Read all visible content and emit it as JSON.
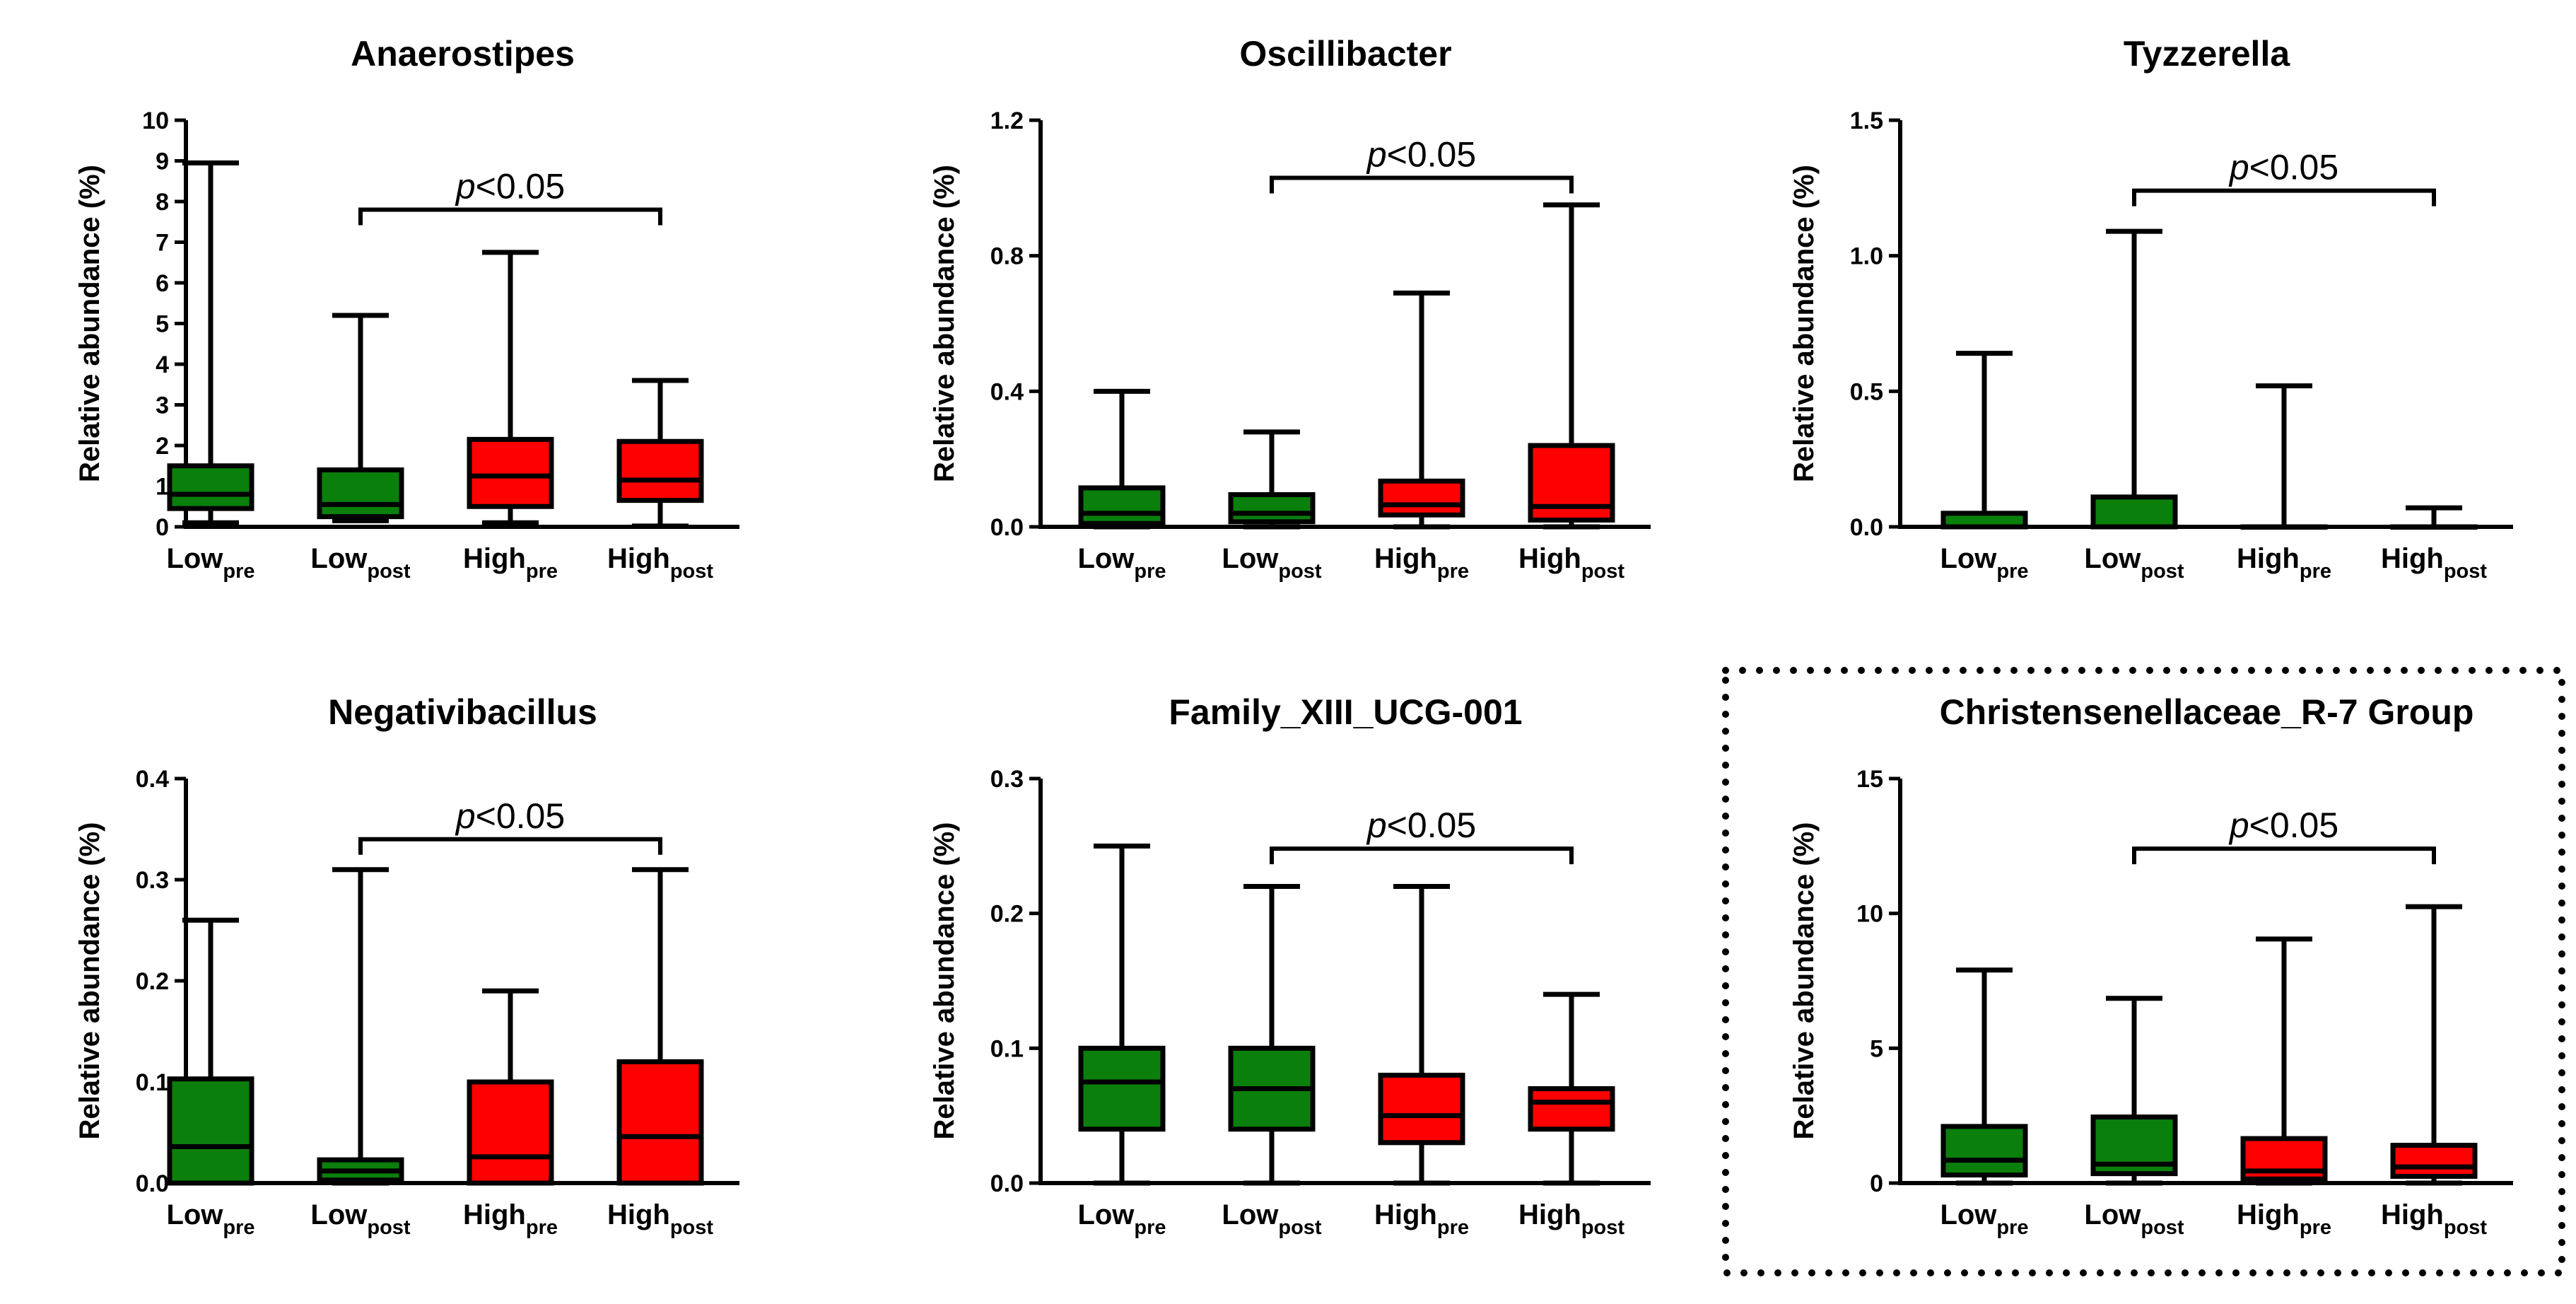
{
  "figure": {
    "colors": {
      "green": "#0b7f0b",
      "red": "#ff0000",
      "ink": "#000000"
    },
    "highlighted_panel": "Christensenellaceae_R-7 Group"
  },
  "chart_data": [
    {
      "type": "boxplot",
      "title": "Anaerostipes",
      "ylabel": "Relative abundance (%)",
      "ylim": [
        0,
        10
      ],
      "yticks": [
        "0",
        "1",
        "2",
        "3",
        "4",
        "5",
        "6",
        "7",
        "8",
        "9",
        "10"
      ],
      "categories": [
        {
          "main": "Low",
          "sub": "pre",
          "color": "#0b7f0b"
        },
        {
          "main": "Low",
          "sub": "post",
          "color": "#0b7f0b"
        },
        {
          "main": "High",
          "sub": "pre",
          "color": "#ff0000"
        },
        {
          "main": "High",
          "sub": "post",
          "color": "#ff0000"
        }
      ],
      "boxes": [
        {
          "min": 0.1,
          "q1": 0.45,
          "median": 0.8,
          "q3": 1.5,
          "max": 8.95
        },
        {
          "min": 0.15,
          "q1": 0.25,
          "median": 0.55,
          "q3": 1.4,
          "max": 5.2
        },
        {
          "min": 0.1,
          "q1": 0.5,
          "median": 1.25,
          "q3": 2.15,
          "max": 6.75
        },
        {
          "min": 0.02,
          "q1": 0.65,
          "median": 1.15,
          "q3": 2.1,
          "max": 3.6
        }
      ],
      "significance": {
        "from": 1,
        "to": 3,
        "y": 7.8,
        "p_symbol": "p",
        "p_rest": "<0.05"
      }
    },
    {
      "type": "boxplot",
      "title": "Oscillibacter",
      "ylabel": "Relative abundance (%)",
      "ylim": [
        0,
        1.2
      ],
      "yticks": [
        "0.0",
        "0.4",
        "0.8",
        "1.2"
      ],
      "categories": [
        {
          "main": "Low",
          "sub": "pre",
          "color": "#0b7f0b"
        },
        {
          "main": "Low",
          "sub": "post",
          "color": "#0b7f0b"
        },
        {
          "main": "High",
          "sub": "pre",
          "color": "#ff0000"
        },
        {
          "main": "High",
          "sub": "post",
          "color": "#ff0000"
        }
      ],
      "boxes": [
        {
          "min": 0.0,
          "q1": 0.01,
          "median": 0.04,
          "q3": 0.115,
          "max": 0.4
        },
        {
          "min": 0.0,
          "q1": 0.015,
          "median": 0.04,
          "q3": 0.095,
          "max": 0.28
        },
        {
          "min": 0.0,
          "q1": 0.035,
          "median": 0.065,
          "q3": 0.135,
          "max": 0.69
        },
        {
          "min": 0.0,
          "q1": 0.02,
          "median": 0.06,
          "q3": 0.24,
          "max": 0.95
        }
      ],
      "significance": {
        "from": 1,
        "to": 3,
        "y": 1.03,
        "p_symbol": "p",
        "p_rest": "<0.05"
      }
    },
    {
      "type": "boxplot",
      "title": "Tyzzerella",
      "ylabel": "Relative abundance (%)",
      "ylim": [
        0,
        1.5
      ],
      "yticks": [
        "0.0",
        "0.5",
        "1.0",
        "1.5"
      ],
      "categories": [
        {
          "main": "Low",
          "sub": "pre",
          "color": "#0b7f0b"
        },
        {
          "main": "Low",
          "sub": "post",
          "color": "#0b7f0b"
        },
        {
          "main": "High",
          "sub": "pre",
          "color": "#ff0000"
        },
        {
          "main": "High",
          "sub": "post",
          "color": "#ff0000"
        }
      ],
      "boxes": [
        {
          "min": 0.0,
          "q1": 0.0,
          "median": 0.0,
          "q3": 0.05,
          "max": 0.64
        },
        {
          "min": 0.0,
          "q1": 0.0,
          "median": 0.0,
          "q3": 0.11,
          "max": 1.09
        },
        {
          "min": 0.0,
          "q1": 0.0,
          "median": 0.0,
          "q3": 0.0,
          "max": 0.52
        },
        {
          "min": 0.0,
          "q1": 0.0,
          "median": 0.0,
          "q3": 0.0,
          "max": 0.07
        }
      ],
      "significance": {
        "from": 1,
        "to": 3,
        "y": 1.24,
        "p_symbol": "p",
        "p_rest": "<0.05"
      }
    },
    {
      "type": "boxplot",
      "title": "Negativibacillus",
      "ylabel": "Relative abundance (%)",
      "ylim": [
        0,
        0.4
      ],
      "yticks": [
        "0.0",
        "0.1",
        "0.2",
        "0.3",
        "0.4"
      ],
      "categories": [
        {
          "main": "Low",
          "sub": "pre",
          "color": "#0b7f0b"
        },
        {
          "main": "Low",
          "sub": "post",
          "color": "#0b7f0b"
        },
        {
          "main": "High",
          "sub": "pre",
          "color": "#ff0000"
        },
        {
          "main": "High",
          "sub": "post",
          "color": "#ff0000"
        }
      ],
      "boxes": [
        {
          "min": 0.0,
          "q1": 0.0,
          "median": 0.036,
          "q3": 0.103,
          "max": 0.26
        },
        {
          "min": 0.0,
          "q1": 0.003,
          "median": 0.012,
          "q3": 0.023,
          "max": 0.31
        },
        {
          "min": 0.0,
          "q1": 0.0,
          "median": 0.026,
          "q3": 0.1,
          "max": 0.19
        },
        {
          "min": 0.0,
          "q1": 0.0,
          "median": 0.046,
          "q3": 0.12,
          "max": 0.31
        }
      ],
      "significance": {
        "from": 1,
        "to": 3,
        "y": 0.34,
        "p_symbol": "p",
        "p_rest": "<0.05"
      }
    },
    {
      "type": "boxplot",
      "title": "Family_XIII_UCG-001",
      "ylabel": "Relative abundance (%)",
      "ylim": [
        0,
        0.3
      ],
      "yticks": [
        "0.0",
        "0.1",
        "0.2",
        "0.3"
      ],
      "categories": [
        {
          "main": "Low",
          "sub": "pre",
          "color": "#0b7f0b"
        },
        {
          "main": "Low",
          "sub": "post",
          "color": "#0b7f0b"
        },
        {
          "main": "High",
          "sub": "pre",
          "color": "#ff0000"
        },
        {
          "main": "High",
          "sub": "post",
          "color": "#ff0000"
        }
      ],
      "boxes": [
        {
          "min": 0.0,
          "q1": 0.04,
          "median": 0.075,
          "q3": 0.1,
          "max": 0.25
        },
        {
          "min": 0.0,
          "q1": 0.04,
          "median": 0.07,
          "q3": 0.1,
          "max": 0.22
        },
        {
          "min": 0.0,
          "q1": 0.03,
          "median": 0.05,
          "q3": 0.08,
          "max": 0.22
        },
        {
          "min": 0.0,
          "q1": 0.04,
          "median": 0.06,
          "q3": 0.07,
          "max": 0.14
        }
      ],
      "significance": {
        "from": 1,
        "to": 3,
        "y": 0.248,
        "p_symbol": "p",
        "p_rest": "<0.05"
      }
    },
    {
      "type": "boxplot",
      "title": "Christensenellaceae_R-7 Group",
      "ylabel": "Relative abundance (%)",
      "ylim": [
        0,
        15
      ],
      "yticks": [
        "0",
        "5",
        "10",
        "15"
      ],
      "categories": [
        {
          "main": "Low",
          "sub": "pre",
          "color": "#0b7f0b"
        },
        {
          "main": "Low",
          "sub": "post",
          "color": "#0b7f0b"
        },
        {
          "main": "High",
          "sub": "pre",
          "color": "#ff0000"
        },
        {
          "main": "High",
          "sub": "post",
          "color": "#ff0000"
        }
      ],
      "boxes": [
        {
          "min": 0.0,
          "q1": 0.3,
          "median": 0.85,
          "q3": 2.1,
          "max": 7.9
        },
        {
          "min": 0.0,
          "q1": 0.35,
          "median": 0.7,
          "q3": 2.45,
          "max": 6.85
        },
        {
          "min": 0.0,
          "q1": 0.15,
          "median": 0.45,
          "q3": 1.65,
          "max": 9.05
        },
        {
          "min": 0.0,
          "q1": 0.25,
          "median": 0.6,
          "q3": 1.4,
          "max": 10.25
        }
      ],
      "significance": {
        "from": 1,
        "to": 3,
        "y": 12.4,
        "p_symbol": "p",
        "p_rest": "<0.05"
      }
    }
  ]
}
